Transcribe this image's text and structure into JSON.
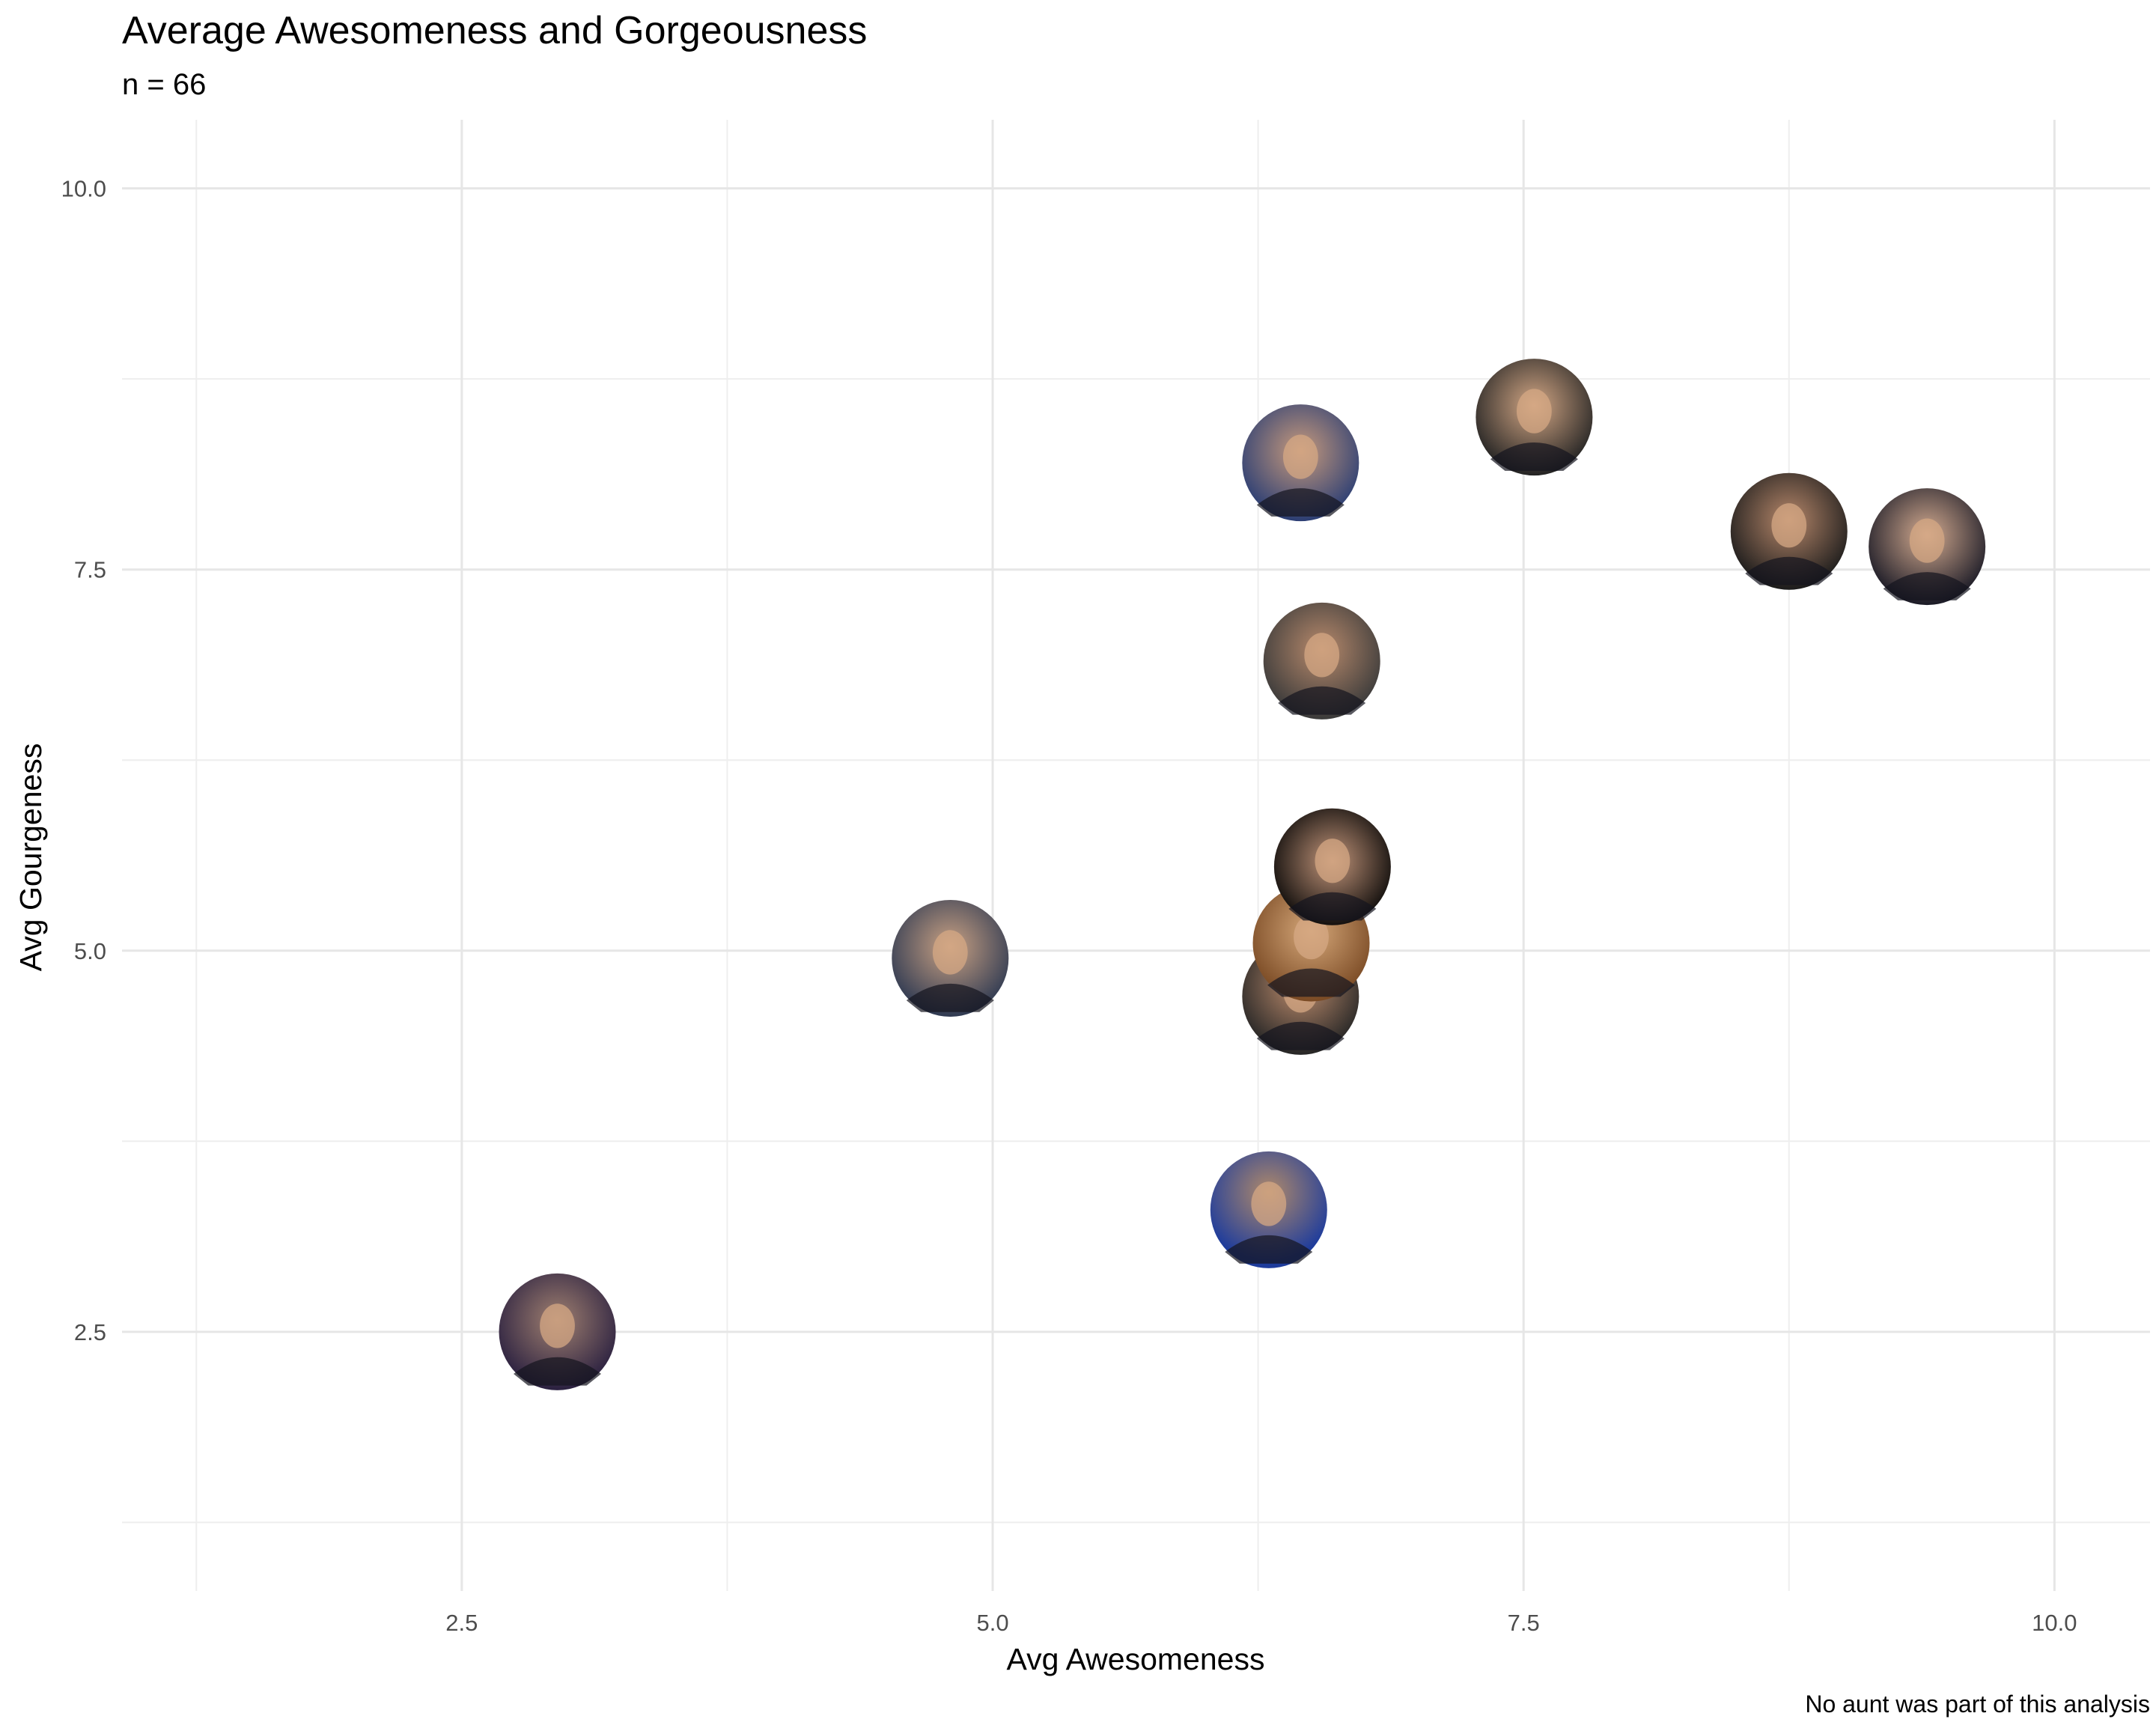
{
  "chart_data": {
    "type": "scatter",
    "title": "Average Awesomeness and Gorgeousness",
    "subtitle": "n = 66",
    "xlabel": "Avg Awesomeness",
    "ylabel": "Avg Gourgeness",
    "caption": "No aunt was part of this analysis",
    "xlim": [
      0.9,
      10.45
    ],
    "ylim": [
      0.8,
      10.45
    ],
    "x_ticks": [
      2.5,
      5.0,
      7.5,
      10.0
    ],
    "x_tick_labels": [
      "2.5",
      "5.0",
      "7.5",
      "10.0"
    ],
    "y_ticks": [
      2.5,
      5.0,
      7.5,
      10.0
    ],
    "y_tick_labels": [
      "2.5",
      "5.0",
      "7.5",
      "10.0"
    ],
    "x_minor_ticks": [
      1.25,
      3.75,
      6.25,
      8.75
    ],
    "y_minor_ticks": [
      1.25,
      3.75,
      6.25,
      8.75
    ],
    "grid": true,
    "legend": "none",
    "marker": "circular portrait photo",
    "points": [
      {
        "x": 2.95,
        "y": 2.5
      },
      {
        "x": 4.8,
        "y": 4.95
      },
      {
        "x": 6.3,
        "y": 3.3
      },
      {
        "x": 6.45,
        "y": 4.7
      },
      {
        "x": 6.5,
        "y": 5.05
      },
      {
        "x": 6.6,
        "y": 5.55
      },
      {
        "x": 6.55,
        "y": 6.9
      },
      {
        "x": 6.45,
        "y": 8.2
      },
      {
        "x": 7.55,
        "y": 8.5
      },
      {
        "x": 8.75,
        "y": 7.75
      },
      {
        "x": 9.4,
        "y": 7.65
      }
    ]
  },
  "colors": {
    "background": "#ffffff",
    "grid_major": "#e6e6e6",
    "grid_minor": "#eeeeee",
    "tick_text": "#4d4d4d"
  }
}
